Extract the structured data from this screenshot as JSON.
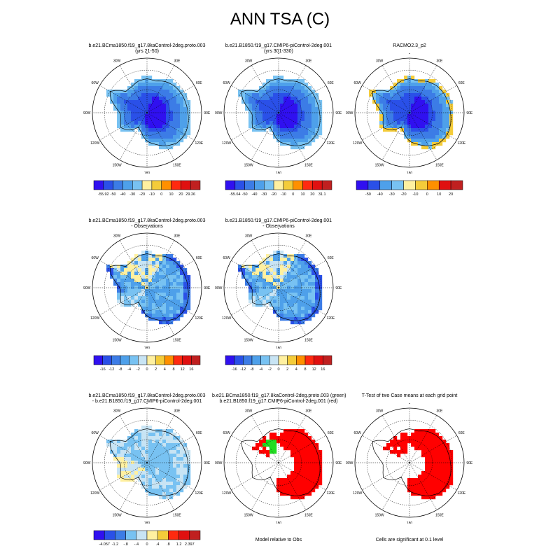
{
  "page": {
    "title": "ANN TSA (C)"
  },
  "colors": {
    "abs": [
      "#3010f0",
      "#2a50e8",
      "#3c7ce6",
      "#4ea0ea",
      "#78c2f2",
      "#c8e4f4",
      "#fff0a0",
      "#f4cc3a",
      "#ff9000",
      "#ff2a10",
      "#e01010",
      "#c02020"
    ],
    "diff": [
      "#3010f0",
      "#2a50e8",
      "#3c7ce6",
      "#4ea0ea",
      "#78c2f2",
      "#c8e4f4",
      "#fff0a0",
      "#f4cc3a",
      "#ff9000",
      "#ff2a10",
      "#e01010",
      "#c02020"
    ],
    "sig": "#ff0000",
    "green": "#22dd22"
  },
  "chart_data": [
    {
      "id": "p1",
      "type": "heatmap",
      "title": [
        "b.e21.BCma1850.f19_g17.8kaControl-2deg.proto.003",
        "(yrs 21-50)"
      ],
      "lon_labels": [
        "0",
        "30E",
        "60E",
        "90E",
        "120E",
        "150E",
        "180",
        "150W",
        "120W",
        "90W",
        "60W",
        "30W"
      ],
      "scale": "abs",
      "pattern": "model",
      "colorbar": {
        "labels": [
          "-55.92",
          "-50",
          "-40",
          "-30",
          "-20",
          "-10",
          "0",
          "10",
          "20",
          "29.26"
        ]
      }
    },
    {
      "id": "p2",
      "type": "heatmap",
      "title": [
        "b.e21.B1850.f19_g17.CMIP6-piControl-2deg.001",
        "(yrs 301-330)"
      ],
      "lon_labels": [
        "0",
        "30E",
        "60E",
        "90E",
        "120E",
        "150E",
        "180",
        "150W",
        "120W",
        "90W",
        "60W",
        "30W"
      ],
      "scale": "abs",
      "pattern": "model",
      "colorbar": {
        "labels": [
          "-55.64",
          "-50",
          "-40",
          "-30",
          "-20",
          "-10",
          "0",
          "10",
          "20",
          "31.1"
        ]
      }
    },
    {
      "id": "p3",
      "type": "heatmap",
      "title": [
        "RACMO2.3_p2"
      ],
      "lon_labels": [
        "0",
        "30E",
        "60E",
        "90E",
        "120E",
        "150E",
        "180",
        "150W",
        "120W",
        "90W",
        "60W",
        "30W"
      ],
      "scale": "abs",
      "pattern": "obs",
      "colorbar": {
        "labels": [
          "-50",
          "-40",
          "-30",
          "-20",
          "-10",
          "0",
          "10",
          "20"
        ]
      }
    },
    {
      "id": "p4",
      "type": "heatmap",
      "title": [
        "b.e21.BCma1850.f19_g17.8kaControl-2deg.proto.003",
        "- Observations"
      ],
      "lon_labels": [
        "0",
        "30E",
        "60E",
        "90E",
        "120E",
        "150E",
        "180",
        "150W",
        "120W",
        "90W",
        "60W",
        "30W"
      ],
      "scale": "diff",
      "pattern": "bias",
      "colorbar": {
        "labels": [
          "-16",
          "-12",
          "-8",
          "-4",
          "-2",
          "0",
          "2",
          "4",
          "8",
          "12",
          "16"
        ]
      }
    },
    {
      "id": "p5",
      "type": "heatmap",
      "title": [
        "b.e21.B1850.f19_g17.CMIP6-piControl-2deg.001",
        "- Observations"
      ],
      "lon_labels": [
        "0",
        "30E",
        "60E",
        "90E",
        "120E",
        "150E",
        "180",
        "150W",
        "120W",
        "90W",
        "60W",
        "30W"
      ],
      "scale": "diff",
      "pattern": "bias",
      "colorbar": {
        "labels": [
          "-16",
          "-12",
          "-8",
          "-4",
          "-2",
          "0",
          "2",
          "4",
          "8",
          "12",
          "16"
        ]
      }
    },
    {
      "id": "p6",
      "type": "heatmap",
      "title": [
        "b.e21.BCma1850.f19_g17.8kaControl-2deg.proto.003",
        "- b.e21.B1850.f19_g17.CMIP6-piControl-2deg.001"
      ],
      "lon_labels": [
        "0",
        "30E",
        "60E",
        "90E",
        "120E",
        "150E",
        "180",
        "150W",
        "120W",
        "90W",
        "60W",
        "30W"
      ],
      "scale": "diff",
      "pattern": "casediff",
      "colorbar": {
        "labels": [
          "-4.057",
          "-1.2",
          "-.8",
          "-.4",
          "0",
          ".4",
          ".8",
          "1.2",
          "2.397"
        ]
      }
    },
    {
      "id": "p7",
      "type": "heatmap",
      "title": [
        "b.e21.BCma1850.f19_g17.8kaControl-2deg.proto.003 (green)",
        "b.e21.B1850.f19_g17.CMIP6-piControl-2deg.001 (red)"
      ],
      "lon_labels": [
        "0",
        "30E",
        "60E",
        "90E",
        "120E",
        "150E",
        "180",
        "150W",
        "120W",
        "90W",
        "60W",
        "30W"
      ],
      "scale": "sig",
      "pattern": "relobs",
      "footnote": "Model relative to Obs"
    },
    {
      "id": "p8",
      "type": "heatmap",
      "title": [
        "T-Test of two Case means at each grid point"
      ],
      "lon_labels": [
        "0",
        "30E",
        "60E",
        "90E",
        "120E",
        "150E",
        "180",
        "150W",
        "120W",
        "90W",
        "60W",
        "30W"
      ],
      "scale": "sig",
      "pattern": "ttest",
      "footnote": "Cells are significant at 0.1 level"
    }
  ]
}
